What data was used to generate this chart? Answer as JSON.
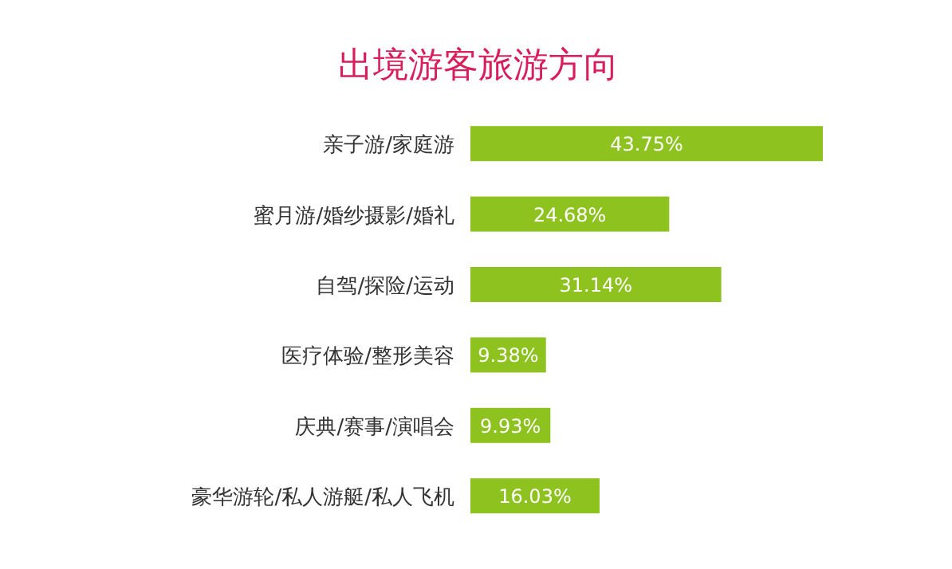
{
  "chart_data": {
    "type": "bar",
    "orientation": "horizontal",
    "title": "出境游客旅游方向",
    "categories": [
      "亲子游/家庭游",
      "蜜月游/婚纱摄影/婚礼",
      "自驾/探险/运动",
      "医疗体验/整形美容",
      "庆典/赛事/演唱会",
      "豪华游轮/私人游艇/私人飞机"
    ],
    "values": [
      43.75,
      24.68,
      31.14,
      9.38,
      9.93,
      16.03
    ],
    "value_labels": [
      "43.75%",
      "24.68%",
      "31.14%",
      "9.38%",
      "9.93%",
      "16.03%"
    ],
    "color": "#8dc21f"
  }
}
